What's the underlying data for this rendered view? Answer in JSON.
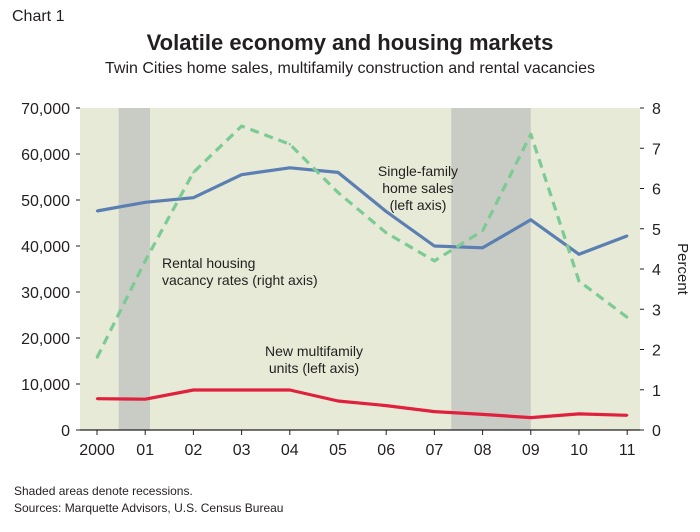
{
  "header": {
    "chart_label": "Chart 1",
    "title": "Volatile economy and housing markets",
    "subtitle": "Twin Cities home sales, multifamily construction and rental vacancies"
  },
  "footer": {
    "note": "Shaded areas denote recessions.",
    "sources": "Sources: Marquette Advisors, U.S. Census Bureau"
  },
  "colors": {
    "plot_background": "#e6ead6",
    "recession_shade": "#c9ccc4",
    "single_family": "#5b7fb2",
    "multifamily": "#e0203d",
    "vacancy": "#7ccb95"
  },
  "chart_data": {
    "type": "line",
    "categories": [
      "2000",
      "01",
      "02",
      "03",
      "04",
      "05",
      "06",
      "07",
      "08",
      "09",
      "10",
      "11"
    ],
    "left_axis": {
      "ylim": [
        0,
        70000
      ],
      "ticks": [
        "0",
        "10,000",
        "20,000",
        "30,000",
        "40,000",
        "50,000",
        "60,000",
        "70,000"
      ]
    },
    "right_axis": {
      "label": "Percent",
      "ylim": [
        0,
        8
      ],
      "ticks": [
        "0",
        "1",
        "2",
        "3",
        "4",
        "5",
        "6",
        "7",
        "8"
      ]
    },
    "recessions": [
      {
        "from": 0.45,
        "to": 1.1
      },
      {
        "from": 7.35,
        "to": 9.0
      }
    ],
    "series": [
      {
        "name": "Single-family home sales (left axis)",
        "label_lines": [
          "Single-family",
          "home sales",
          "(left axis)"
        ],
        "axis": "left",
        "style": "solid",
        "values": [
          47600,
          49500,
          50500,
          55500,
          57000,
          56000,
          47500,
          40000,
          39600,
          45700,
          38200,
          42200
        ]
      },
      {
        "name": "New multifamily units (left axis)",
        "label_lines": [
          "New multifamily",
          "units (left axis)"
        ],
        "axis": "left",
        "style": "solid",
        "values": [
          6800,
          6700,
          8700,
          8700,
          8700,
          6300,
          5300,
          4000,
          3400,
          2700,
          3500,
          3200
        ]
      },
      {
        "name": "Rental housing vacancy rates (right axis)",
        "label_lines": [
          "Rental housing",
          "vacancy rates (right axis)"
        ],
        "axis": "right",
        "style": "dashed",
        "values": [
          1.8,
          4.2,
          6.4,
          7.55,
          7.1,
          5.9,
          4.9,
          4.2,
          4.95,
          7.35,
          3.7,
          2.8
        ]
      }
    ]
  }
}
